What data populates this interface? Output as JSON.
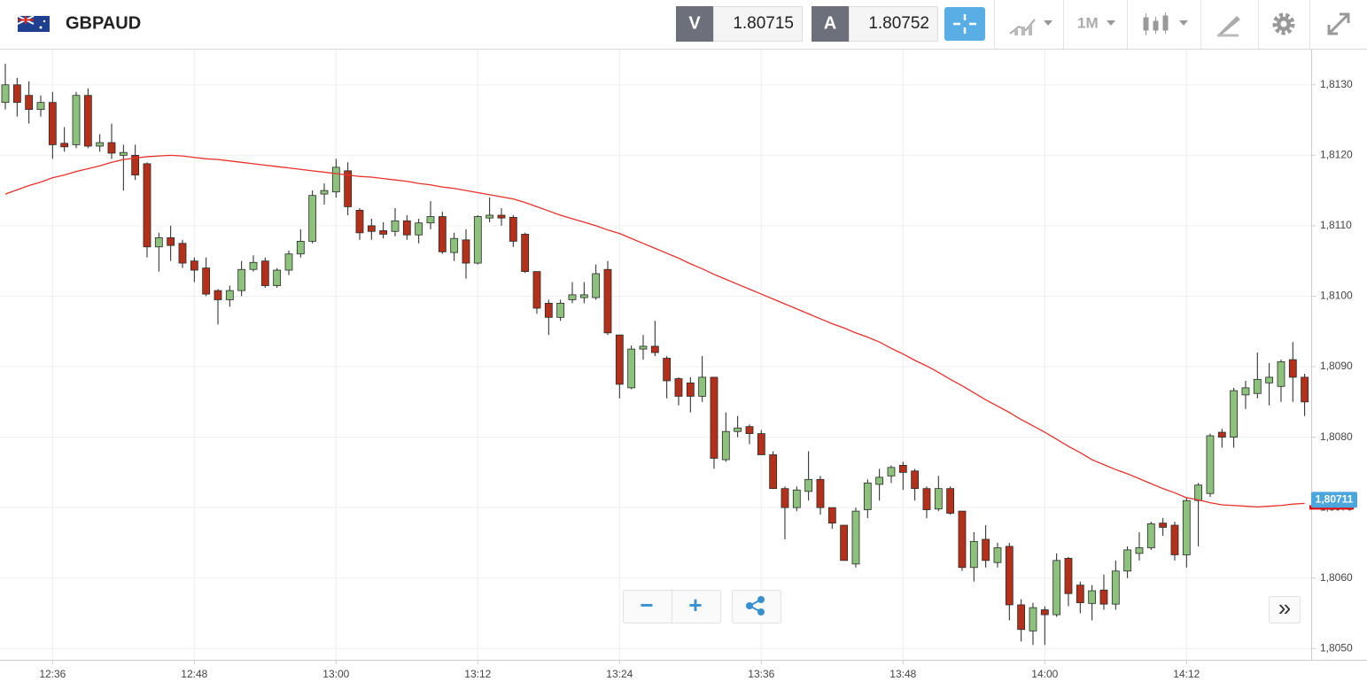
{
  "toolbar": {
    "symbol": "GBPAUD",
    "bid_label": "V",
    "bid": "1.80715",
    "ask_label": "A",
    "ask": "1.80752",
    "timeframe": "1M"
  },
  "controls": {
    "zoom_out": "−",
    "zoom_in": "+",
    "scroll": "»"
  },
  "chart_data": {
    "type": "candlestick",
    "categories": [
      null,
      null,
      null,
      null,
      "12:36",
      null,
      null,
      null,
      null,
      null,
      null,
      null,
      null,
      null,
      null,
      null,
      "12:48",
      null,
      null,
      null,
      null,
      null,
      null,
      null,
      null,
      null,
      null,
      null,
      "13:00",
      null,
      null,
      null,
      null,
      null,
      null,
      null,
      null,
      null,
      null,
      null,
      "13:12",
      null,
      null,
      null,
      null,
      null,
      null,
      null,
      null,
      null,
      null,
      null,
      "13:24",
      null,
      null,
      null,
      null,
      null,
      null,
      null,
      null,
      null,
      null,
      null,
      "13:36",
      null,
      null,
      null,
      null,
      null,
      null,
      null,
      null,
      null,
      null,
      null,
      "13:48",
      null,
      null,
      null,
      null,
      null,
      null,
      null,
      null,
      null,
      null,
      null,
      "14:00",
      null,
      null,
      null,
      null,
      null,
      null,
      null,
      null,
      null,
      null,
      null,
      "14:12",
      null,
      null,
      null,
      null,
      null,
      null,
      null,
      null,
      null,
      null
    ],
    "open": [
      1.81275,
      1.813,
      1.81285,
      1.81265,
      1.81275,
      1.81217,
      1.81215,
      1.81285,
      1.81213,
      1.81218,
      1.812,
      1.812,
      1.81188,
      1.8107,
      1.81083,
      1.81075,
      1.8105,
      1.8104,
      1.81008,
      1.80995,
      1.81008,
      1.81038,
      1.8105,
      1.81015,
      1.81037,
      1.8106,
      1.81078,
      1.81145,
      1.81148,
      1.81178,
      1.81122,
      1.811,
      1.81093,
      1.81092,
      1.81107,
      1.81087,
      1.81104,
      1.81113,
      1.81062,
      1.8108,
      1.81047,
      1.81111,
      1.81115,
      1.81112,
      1.81088,
      1.81035,
      1.8099,
      1.8097,
      1.80995,
      1.80998,
      1.80998,
      1.81038,
      1.80945,
      1.8087,
      1.80925,
      1.80929,
      1.80912,
      1.80883,
      1.80877,
      1.80858,
      1.80885,
      1.80768,
      1.80808,
      1.80815,
      1.80805,
      1.80775,
      1.80727,
      1.807,
      1.80723,
      1.8074,
      1.807,
      1.80675,
      1.8062,
      1.80697,
      1.80733,
      1.80745,
      1.8076,
      1.80752,
      1.80727,
      1.80698,
      1.80727,
      1.80695,
      1.80615,
      1.80655,
      1.80622,
      1.80645,
      1.80562,
      1.80525,
      1.80555,
      1.80548,
      1.80628,
      1.8059,
      1.80564,
      1.80583,
      1.80563,
      1.8061,
      1.80635,
      1.80643,
      1.80678,
      1.80675,
      1.80633,
      1.8071,
      1.8072,
      1.80807,
      1.808,
      1.8086,
      1.80862,
      1.80877,
      1.80872,
      1.8091,
      1.80885
    ],
    "high": [
      1.8133,
      1.8131,
      1.81305,
      1.81285,
      1.8129,
      1.8124,
      1.8129,
      1.81295,
      1.8123,
      1.81245,
      1.81215,
      1.81215,
      1.8119,
      1.8109,
      1.811,
      1.8108,
      1.81055,
      1.81055,
      1.8101,
      1.81015,
      1.8105,
      1.81058,
      1.81055,
      1.8104,
      1.81065,
      1.81095,
      1.8115,
      1.8116,
      1.81195,
      1.8119,
      1.81125,
      1.8111,
      1.81105,
      1.81125,
      1.81115,
      1.8111,
      1.81135,
      1.8112,
      1.8109,
      1.81095,
      1.81115,
      1.8114,
      1.81125,
      1.81115,
      1.8109,
      1.81035,
      1.80995,
      1.80995,
      1.8102,
      1.8102,
      1.81045,
      1.8105,
      1.80945,
      1.8093,
      1.80945,
      1.80965,
      1.80915,
      1.80885,
      1.80885,
      1.80915,
      1.80885,
      1.80835,
      1.8083,
      1.80818,
      1.8081,
      1.8078,
      1.8073,
      1.8073,
      1.8078,
      1.80745,
      1.807,
      1.80675,
      1.807,
      1.8074,
      1.80755,
      1.8076,
      1.80765,
      1.80755,
      1.8073,
      1.80745,
      1.8073,
      1.80695,
      1.80665,
      1.80675,
      1.8065,
      1.8065,
      1.8057,
      1.80565,
      1.8056,
      1.80635,
      1.8063,
      1.80595,
      1.8059,
      1.80605,
      1.80625,
      1.80645,
      1.80665,
      1.8068,
      1.80685,
      1.8068,
      1.80715,
      1.80735,
      1.80805,
      1.80812,
      1.8087,
      1.8088,
      1.8092,
      1.80905,
      1.8091,
      1.80935,
      1.8089
    ],
    "low": [
      1.81265,
      1.81255,
      1.81245,
      1.81255,
      1.81195,
      1.81205,
      1.8121,
      1.8121,
      1.81205,
      1.81195,
      1.8115,
      1.81165,
      1.81055,
      1.81035,
      1.8105,
      1.8104,
      1.8102,
      1.81,
      1.8096,
      1.80985,
      1.81,
      1.81035,
      1.81012,
      1.81012,
      1.8103,
      1.81055,
      1.81075,
      1.8113,
      1.8114,
      1.81115,
      1.8108,
      1.8108,
      1.81082,
      1.81085,
      1.8108,
      1.81075,
      1.81095,
      1.8106,
      1.8105,
      1.81025,
      1.81045,
      1.81105,
      1.811,
      1.8107,
      1.81033,
      1.80975,
      1.80945,
      1.80965,
      1.8099,
      1.8099,
      1.80995,
      1.80945,
      1.80855,
      1.80868,
      1.8091,
      1.80915,
      1.80855,
      1.80845,
      1.80835,
      1.8085,
      1.80755,
      1.80765,
      1.808,
      1.8079,
      1.80775,
      1.80727,
      1.80655,
      1.80695,
      1.8071,
      1.8069,
      1.8067,
      1.80625,
      1.80615,
      1.80685,
      1.8071,
      1.80735,
      1.80725,
      1.8071,
      1.80685,
      1.80695,
      1.8069,
      1.8061,
      1.80595,
      1.80615,
      1.80615,
      1.8054,
      1.8051,
      1.80505,
      1.80505,
      1.80545,
      1.8056,
      1.8055,
      1.8054,
      1.80555,
      1.80555,
      1.806,
      1.80625,
      1.8064,
      1.8066,
      1.80625,
      1.80615,
      1.80645,
      1.80715,
      1.80785,
      1.80785,
      1.8084,
      1.80855,
      1.80845,
      1.8085,
      1.8085,
      1.8083
    ],
    "close": [
      1.813,
      1.81275,
      1.81265,
      1.81275,
      1.81215,
      1.81212,
      1.81285,
      1.81213,
      1.81218,
      1.81203,
      1.81204,
      1.81172,
      1.8107,
      1.81083,
      1.81072,
      1.81047,
      1.81037,
      1.81003,
      1.80995,
      1.81008,
      1.81038,
      1.81048,
      1.81015,
      1.81037,
      1.8106,
      1.81078,
      1.81143,
      1.8115,
      1.81183,
      1.81127,
      1.8109,
      1.81092,
      1.81088,
      1.81107,
      1.81087,
      1.81104,
      1.81113,
      1.81063,
      1.81082,
      1.81047,
      1.81113,
      1.81115,
      1.81111,
      1.81078,
      1.81035,
      1.80983,
      1.8097,
      1.8099,
      1.81002,
      1.81002,
      1.81032,
      1.80948,
      1.80875,
      1.80925,
      1.80929,
      1.8092,
      1.8088,
      1.80858,
      1.80858,
      1.80885,
      1.8077,
      1.80808,
      1.80813,
      1.80805,
      1.80775,
      1.80727,
      1.807,
      1.80725,
      1.8074,
      1.807,
      1.80678,
      1.80625,
      1.80695,
      1.80735,
      1.80743,
      1.80757,
      1.8075,
      1.80727,
      1.80697,
      1.80727,
      1.80692,
      1.80615,
      1.80652,
      1.80625,
      1.80643,
      1.80562,
      1.80527,
      1.80558,
      1.80548,
      1.80625,
      1.80578,
      1.80565,
      1.80582,
      1.80563,
      1.8061,
      1.8064,
      1.80643,
      1.80677,
      1.80672,
      1.80633,
      1.8071,
      1.80732,
      1.80802,
      1.808,
      1.80866,
      1.8087,
      1.80882,
      1.80885,
      1.80907,
      1.80885,
      1.8085
    ],
    "up_color": "#8cc27c",
    "down_color": "#b5301a",
    "moving_average": {
      "color": "#e8312a",
      "values": [
        1.81145,
        1.81151,
        1.81157,
        1.81162,
        1.81168,
        1.81172,
        1.81177,
        1.81181,
        1.81185,
        1.8119,
        1.81194,
        1.81196,
        1.81198,
        1.81199,
        1.812,
        1.81199,
        1.81197,
        1.81195,
        1.81194,
        1.81192,
        1.8119,
        1.81188,
        1.81186,
        1.81184,
        1.81182,
        1.8118,
        1.81178,
        1.81176,
        1.81174,
        1.81172,
        1.8117,
        1.81169,
        1.81167,
        1.81165,
        1.81163,
        1.8116,
        1.81158,
        1.81155,
        1.81153,
        1.8115,
        1.81147,
        1.81144,
        1.81141,
        1.81138,
        1.81133,
        1.81127,
        1.81121,
        1.81115,
        1.8111,
        1.81105,
        1.811,
        1.81094,
        1.81089,
        1.81082,
        1.81075,
        1.81068,
        1.81061,
        1.81054,
        1.81046,
        1.81039,
        1.81031,
        1.81024,
        1.81017,
        1.8101,
        1.81003,
        1.80996,
        1.80989,
        1.80982,
        1.80975,
        1.80968,
        1.80961,
        1.80955,
        1.80948,
        1.80942,
        1.80935,
        1.80926,
        1.80918,
        1.80909,
        1.80901,
        1.80892,
        1.80882,
        1.80873,
        1.80863,
        1.80853,
        1.80844,
        1.80835,
        1.80825,
        1.80816,
        1.80807,
        1.80797,
        1.80787,
        1.80778,
        1.80768,
        1.80761,
        1.80754,
        1.80748,
        1.80741,
        1.80734,
        1.80727,
        1.80721,
        1.80714,
        1.80711,
        1.80707,
        1.80704,
        1.80703,
        1.80702,
        1.80701,
        1.80702,
        1.80703,
        1.80705,
        1.80706
      ]
    },
    "last_price": {
      "value": 1.80711,
      "label": "1,80711"
    },
    "ylim": [
      1.80484,
      1.8135
    ],
    "yticks": [
      {
        "value": 1.805,
        "label": "1,8050"
      },
      {
        "value": 1.806,
        "label": "1,8060"
      },
      {
        "value": 1.807,
        "label": "1,8070"
      },
      {
        "value": 1.808,
        "label": "1,8080"
      },
      {
        "value": 1.809,
        "label": "1,8090"
      },
      {
        "value": 1.81,
        "label": "1,8100"
      },
      {
        "value": 1.811,
        "label": "1,8110"
      },
      {
        "value": 1.812,
        "label": "1,8120"
      },
      {
        "value": 1.813,
        "label": "1,8130"
      }
    ],
    "grid": true
  }
}
